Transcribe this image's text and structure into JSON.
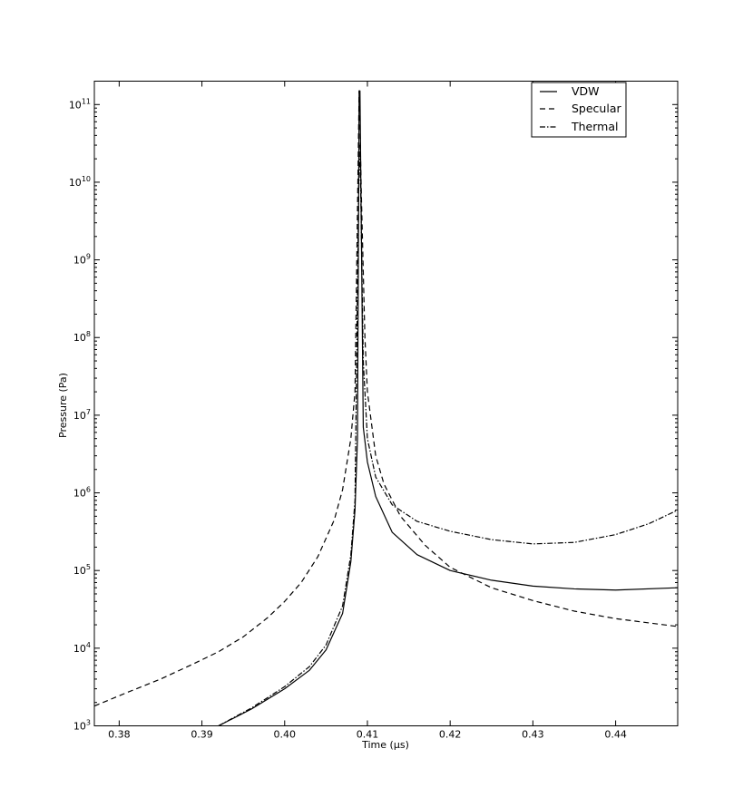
{
  "chart_data": {
    "type": "line",
    "title": "",
    "xlabel": "Time (µs)",
    "ylabel": "Pressure (Pa)",
    "xlim": [
      0.377,
      0.4475
    ],
    "ylim": [
      1000,
      200000000000
    ],
    "yscale": "log",
    "grid": false,
    "legend_position": "top-right",
    "x_ticks": [
      {
        "value": 0.38,
        "label": "0.38"
      },
      {
        "value": 0.39,
        "label": "0.39"
      },
      {
        "value": 0.4,
        "label": "0.40"
      },
      {
        "value": 0.41,
        "label": "0.41"
      },
      {
        "value": 0.42,
        "label": "0.42"
      },
      {
        "value": 0.43,
        "label": "0.43"
      },
      {
        "value": 0.44,
        "label": "0.44"
      }
    ],
    "y_ticks": [
      {
        "value": 1000,
        "base": "10",
        "exp": "3"
      },
      {
        "value": 10000,
        "base": "10",
        "exp": "4"
      },
      {
        "value": 100000,
        "base": "10",
        "exp": "5"
      },
      {
        "value": 1000000,
        "base": "10",
        "exp": "6"
      },
      {
        "value": 10000000,
        "base": "10",
        "exp": "7"
      },
      {
        "value": 100000000,
        "base": "10",
        "exp": "8"
      },
      {
        "value": 1000000000,
        "base": "10",
        "exp": "9"
      },
      {
        "value": 10000000000,
        "base": "10",
        "exp": "10"
      },
      {
        "value": 100000000000,
        "base": "10",
        "exp": "11"
      }
    ],
    "series": [
      {
        "name": "VDW",
        "style": "solid",
        "x": [
          0.392,
          0.396,
          0.4,
          0.403,
          0.405,
          0.407,
          0.408,
          0.4085,
          0.4088,
          0.409,
          0.4091,
          0.4095,
          0.41,
          0.411,
          0.413,
          0.416,
          0.42,
          0.425,
          0.43,
          0.435,
          0.44,
          0.4475
        ],
        "y": [
          1000,
          1650,
          3000,
          5200,
          9500,
          28000,
          130000,
          600000,
          5000000,
          150000000000,
          150000000000,
          7000000,
          2500000,
          900000,
          310000,
          160000,
          100000,
          75000,
          63000,
          58000,
          56000,
          60000
        ]
      },
      {
        "name": "Specular",
        "style": "dashed",
        "x": [
          0.377,
          0.381,
          0.385,
          0.389,
          0.392,
          0.395,
          0.398,
          0.4,
          0.402,
          0.404,
          0.406,
          0.407,
          0.408,
          0.4085,
          0.409,
          0.4093,
          0.4097,
          0.41,
          0.411,
          0.412,
          0.414,
          0.417,
          0.42,
          0.425,
          0.43,
          0.435,
          0.44,
          0.4475
        ],
        "y": [
          1800,
          2700,
          4000,
          6300,
          9000,
          14000,
          25000,
          40000,
          70000,
          150000,
          450000,
          1100000,
          5000000,
          20000000,
          150000000000,
          5000000000,
          100000000,
          20000000,
          3000000,
          1300000,
          500000,
          210000,
          110000,
          60000,
          41000,
          30000,
          24000,
          19000
        ]
      },
      {
        "name": "Thermal",
        "style": "dashdot",
        "x": [
          0.392,
          0.396,
          0.4,
          0.403,
          0.405,
          0.407,
          0.408,
          0.4085,
          0.409,
          0.4092,
          0.4095,
          0.41,
          0.411,
          0.413,
          0.416,
          0.42,
          0.425,
          0.43,
          0.435,
          0.44,
          0.444,
          0.4475
        ],
        "y": [
          1000,
          1700,
          3200,
          5800,
          11000,
          35000,
          160000,
          800000,
          30000000000,
          7000000000,
          50000000,
          5000000,
          1600000,
          700000,
          430000,
          320000,
          250000,
          220000,
          230000,
          290000,
          400000,
          600000
        ]
      }
    ]
  }
}
